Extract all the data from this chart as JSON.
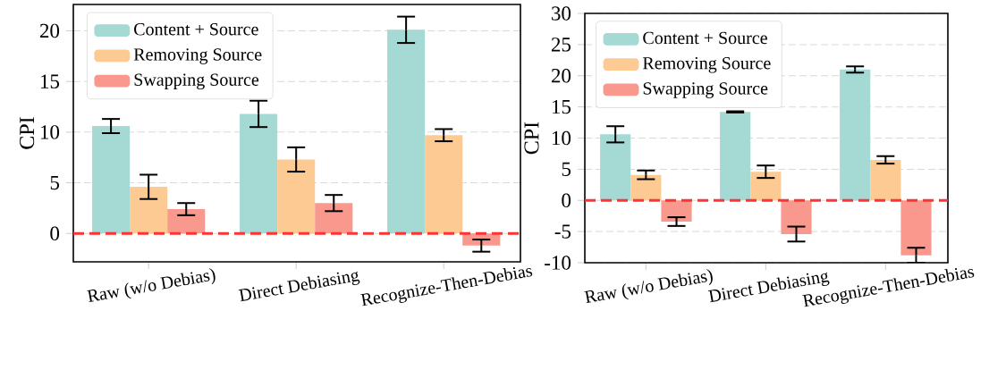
{
  "chart_data": [
    {
      "type": "bar",
      "ylabel": "CPI",
      "categories": [
        "Raw (w/o Debias)",
        "Direct Debiasing",
        "Recognize-Then-Debias"
      ],
      "series": [
        {
          "name": "Content + Source",
          "color": "#a5d9d3",
          "values": [
            10.6,
            11.8,
            20.1
          ],
          "errors": [
            0.7,
            1.3,
            1.3
          ]
        },
        {
          "name": "Removing Source",
          "color": "#fdca93",
          "values": [
            4.6,
            7.3,
            9.7
          ],
          "errors": [
            1.2,
            1.2,
            0.6
          ]
        },
        {
          "name": "Swapping Source",
          "color": "#f9998e",
          "values": [
            2.4,
            3.0,
            -1.2
          ],
          "errors": [
            0.6,
            0.8,
            0.6
          ]
        }
      ],
      "ylim": [
        -2.8,
        22.6
      ],
      "yticks": [
        0,
        5,
        10,
        15,
        20
      ],
      "grid": "y",
      "legend": "top left",
      "ref_lines": [
        {
          "axis": "y",
          "value": 0,
          "color": "#ff3333",
          "line_style": "dashed"
        }
      ]
    },
    {
      "type": "bar",
      "ylabel": "CPI",
      "categories": [
        "Raw (w/o Debias)",
        "Direct Debiasing",
        "Recognize-Then-Debias"
      ],
      "series": [
        {
          "name": "Content + Source",
          "color": "#a5d9d3",
          "values": [
            10.6,
            14.2,
            21.0
          ],
          "errors": [
            1.3,
            0.1,
            0.5
          ]
        },
        {
          "name": "Removing Source",
          "color": "#fdca93",
          "values": [
            4.1,
            4.6,
            6.5
          ],
          "errors": [
            0.7,
            1.0,
            0.6
          ]
        },
        {
          "name": "Swapping Source",
          "color": "#f9998e",
          "values": [
            -3.4,
            -5.4,
            -8.8
          ],
          "errors": [
            0.7,
            1.2,
            1.2
          ]
        }
      ],
      "ylim": [
        -10,
        30
      ],
      "yticks": [
        -10,
        -5,
        0,
        5,
        10,
        15,
        20,
        25,
        30
      ],
      "grid": "y",
      "legend": "top left",
      "ref_lines": [
        {
          "axis": "y",
          "value": 0,
          "color": "#ff3333",
          "line_style": "dashed"
        }
      ]
    }
  ]
}
